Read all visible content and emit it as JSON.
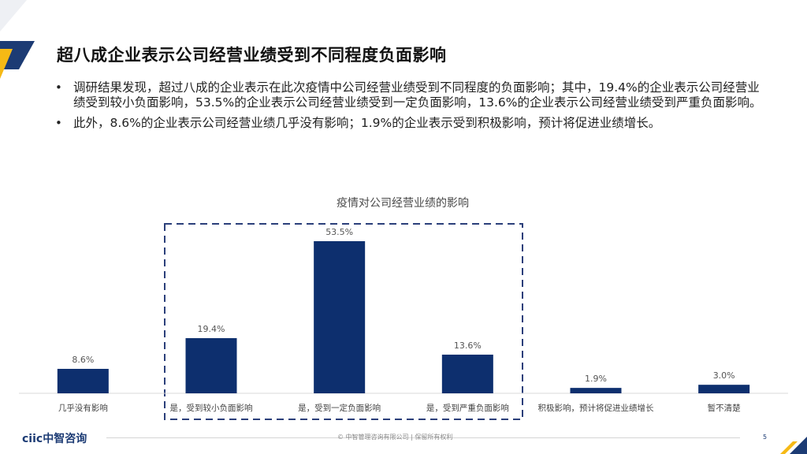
{
  "slide": {
    "title": "超八成企业表示公司经营业绩受到不同程度负面影响",
    "bullets": [
      "调研结果发现，超过八成的企业表示在此次疫情中公司经营业绩受到不同程度的负面影响；其中，19.4%的企业表示公司经营业绩受到较小负面影响，53.5%的企业表示公司经营业绩受到一定负面影响，13.6%的企业表示公司经营业绩受到严重负面影响。",
      "此外，8.6%的企业表示公司经营业绩几乎没有影响；1.9%的企业表示受到积极影响，预计将促进业绩增长。"
    ],
    "bullet_glyph": "•",
    "page_number": "5"
  },
  "footer": {
    "logo_text": "ciic中智咨询",
    "copyright": "© 中智管理咨询有限公司 | 保留所有权利"
  },
  "colors": {
    "bar": "#0d2f6e",
    "accent_blue": "#1c3b74",
    "accent_yellow": "#f6b915",
    "highlight_box": "#2b3f7a"
  },
  "chart_data": {
    "type": "bar",
    "title": "疫情对公司经营业绩的影响",
    "categories": [
      "几乎没有影响",
      "是，受到较小负面影响",
      "是，受到一定负面影响",
      "是，受到严重负面影响",
      "积极影响，预计将促进业绩增长",
      "暂不清楚"
    ],
    "values": [
      8.6,
      19.4,
      53.5,
      13.6,
      1.9,
      3.0
    ],
    "value_labels": [
      "8.6%",
      "19.4%",
      "53.5%",
      "13.6%",
      "1.9%",
      "3.0%"
    ],
    "xlabel": "",
    "ylabel": "",
    "ylim": [
      0,
      60
    ],
    "grid": false,
    "legend": "none",
    "highlighted_categories": [
      1,
      2,
      3
    ]
  }
}
